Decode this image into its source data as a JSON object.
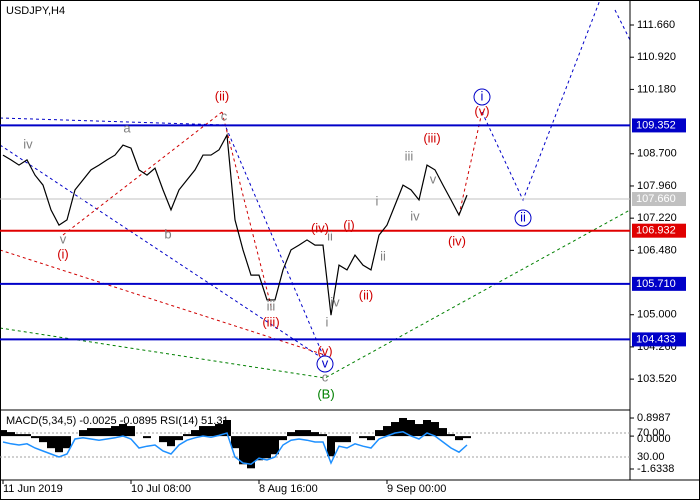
{
  "chart_data": [
    {
      "type": "line",
      "title": "USDJPY,H4",
      "categories": [
        "11 Jun 2019",
        null,
        null,
        null,
        null,
        null,
        null,
        null,
        null,
        null,
        null,
        null,
        null,
        null,
        null,
        null,
        "10 Jul 08:00",
        null,
        null,
        null,
        null,
        null,
        null,
        null,
        null,
        null,
        null,
        null,
        null,
        null,
        null,
        null,
        "8 Aug 16:00",
        null,
        null,
        null,
        null,
        null,
        null,
        null,
        null,
        null,
        null,
        null,
        null,
        null,
        null,
        null,
        "9 Sep 00:00",
        null,
        null,
        null,
        null,
        null,
        null,
        null,
        null,
        null,
        null
      ],
      "series": [
        {
          "name": "USDJPY",
          "color": "#000000",
          "values": [
            108.67,
            108.56,
            108.44,
            108.56,
            108.21,
            107.98,
            107.41,
            107.06,
            107.18,
            107.87,
            108.1,
            108.33,
            108.44,
            108.56,
            108.67,
            108.9,
            108.83,
            108.33,
            108.21,
            108.37,
            107.87,
            107.41,
            107.87,
            108.1,
            108.33,
            108.67,
            108.67,
            108.79,
            109.13,
            107.18,
            106.49,
            105.91,
            105.91,
            105.34,
            105.34,
            106.03,
            106.49,
            106.6,
            106.72,
            106.6,
            106.6,
            104.99,
            106.14,
            106.03,
            106.37,
            106.14,
            106.03,
            106.83,
            107.06,
            107.52,
            107.98,
            107.87,
            107.64,
            108.44,
            108.33,
            107.98,
            107.64,
            107.29,
            107.75
          ]
        }
      ],
      "ylim": [
        102.81,
        112.235
      ],
      "yticks": [
        {
          "value": 111.66,
          "label": "111.660"
        },
        {
          "value": 110.92,
          "label": "110.920"
        },
        {
          "value": 110.18,
          "label": "110.180"
        },
        {
          "value": 108.7,
          "label": "108.700"
        },
        {
          "value": 107.96,
          "label": "107.960"
        },
        {
          "value": 107.22,
          "label": "107.220"
        },
        {
          "value": 106.48,
          "label": "106.480"
        },
        {
          "value": 105,
          "label": "105.000"
        },
        {
          "value": 104.26,
          "label": "104.260"
        },
        {
          "value": 103.52,
          "label": "103.520"
        }
      ],
      "levels": [
        {
          "value": 109.352,
          "label": "109.352",
          "color": "#0000c8"
        },
        {
          "value": 106.932,
          "label": "106.932",
          "color": "#e00000"
        },
        {
          "value": 105.71,
          "label": "105.710",
          "color": "#0000c8"
        },
        {
          "value": 104.433,
          "label": "104.433",
          "color": "#0000c8"
        },
        {
          "value": 107.66,
          "label": "107.660",
          "color": "#c0c0c0"
        }
      ],
      "annotations": [
        {
          "text": "(ii)",
          "color": "#d00000"
        },
        {
          "text": "(i)",
          "color": "#d00000"
        },
        {
          "text": "(iii)",
          "color": "#d00000"
        },
        {
          "text": "(iv)",
          "color": "#d00000"
        },
        {
          "text": "(i)",
          "color": "#d00000"
        },
        {
          "text": "(ii)",
          "color": "#d00000"
        },
        {
          "text": "(iii)",
          "color": "#d00000"
        },
        {
          "text": "(iv)",
          "color": "#d00000"
        },
        {
          "text": "(v)",
          "color": "#d00000"
        },
        {
          "text": "(v)",
          "color": "#d00000"
        },
        {
          "text": "iv",
          "color": "#808080"
        },
        {
          "text": "a",
          "color": "#808080"
        },
        {
          "text": "c",
          "color": "#808080"
        },
        {
          "text": "b",
          "color": "#808080"
        },
        {
          "text": "v",
          "color": "#808080"
        },
        {
          "text": "iii",
          "color": "#808080"
        },
        {
          "text": "ii",
          "color": "#808080"
        },
        {
          "text": "iv",
          "color": "#808080"
        },
        {
          "text": "i",
          "color": "#808080"
        },
        {
          "text": "iii",
          "color": "#808080"
        },
        {
          "text": "i",
          "color": "#808080"
        },
        {
          "text": "iv",
          "color": "#808080"
        },
        {
          "text": "v",
          "color": "#808080"
        },
        {
          "text": "ii",
          "color": "#808080"
        },
        {
          "text": "c",
          "color": "#808080"
        },
        {
          "text": "i",
          "color": "#0000c8",
          "circled": true
        },
        {
          "text": "ii",
          "color": "#0000c8",
          "circled": true
        },
        {
          "text": "v",
          "color": "#0000c8",
          "circled": true
        },
        {
          "text": "(B)",
          "color": "#008000"
        }
      ]
    },
    {
      "type": "indicator",
      "title": "MACD(5,34,5) -0.0025 -0.0895 RSI(14) 51.31",
      "series": [
        {
          "name": "MACD",
          "color": "#000000",
          "values": [
            0.3,
            0.2,
            0.1,
            0.1,
            -0.1,
            -0.3,
            -0.6,
            -0.8,
            -0.6,
            0.0,
            0.3,
            0.4,
            0.4,
            0.4,
            0.5,
            0.6,
            0.5,
            0.0,
            -0.1,
            0.0,
            -0.3,
            -0.5,
            -0.2,
            0.1,
            0.3,
            0.5,
            0.5,
            0.6,
            0.8,
            -0.6,
            -1.4,
            -1.6,
            -1.2,
            -1.1,
            -0.9,
            -0.2,
            0.2,
            0.3,
            0.3,
            0.2,
            0.1,
            -1.0,
            -0.3,
            -0.3,
            0.0,
            -0.1,
            -0.2,
            0.3,
            0.5,
            0.7,
            0.9,
            0.8,
            0.6,
            0.8,
            0.7,
            0.4,
            0.1,
            -0.2,
            -0.1
          ]
        },
        {
          "name": "RSI",
          "color": "#1e90ff",
          "axis": "y2",
          "values": [
            55,
            52,
            50,
            52,
            45,
            40,
            35,
            30,
            35,
            60,
            62,
            60,
            58,
            60,
            62,
            65,
            60,
            45,
            48,
            50,
            40,
            35,
            50,
            58,
            62,
            65,
            63,
            66,
            70,
            30,
            20,
            18,
            28,
            25,
            30,
            50,
            58,
            60,
            58,
            55,
            55,
            20,
            48,
            45,
            52,
            48,
            45,
            60,
            65,
            70,
            72,
            65,
            60,
            70,
            65,
            55,
            45,
            38,
            50
          ]
        }
      ],
      "ylim": [
        -2.181,
        1.297
      ],
      "yticks": [
        0.8987,
        {
          "value": 0,
          "label": "0.0000"
        },
        -1.6338
      ],
      "y2lim": [
        -8.3,
        108.3
      ],
      "y2ticks": [
        {
          "value": 70,
          "label": "70.00"
        },
        {
          "value": 30,
          "label": "30.00"
        }
      ]
    }
  ]
}
